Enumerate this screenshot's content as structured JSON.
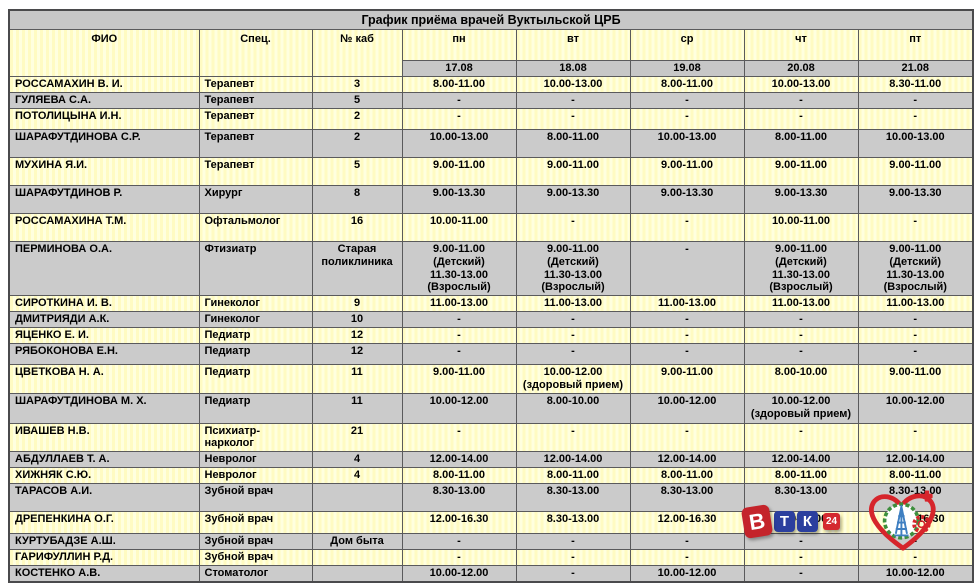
{
  "title": "График приёма врачей Вуктыльской ЦРБ",
  "table": {
    "headers": {
      "fio": "ФИО",
      "spec": "Спец.",
      "room": "№ каб",
      "days": [
        "пн",
        "вт",
        "ср",
        "чт",
        "пт"
      ],
      "dates": [
        "17.08",
        "18.08",
        "19.08",
        "20.08",
        "21.08"
      ]
    },
    "rows": [
      {
        "fio": "РОССАМАХИН В. И.",
        "spec": "Терапевт",
        "room": "3",
        "schedule": [
          "8.00-11.00",
          "10.00-13.00",
          "8.00-11.00",
          "10.00-13.00",
          "8.30-11.00"
        ]
      },
      {
        "fio": "ГУЛЯЕВА С.А.",
        "spec": "Терапевт",
        "room": "5",
        "schedule": [
          "-",
          "-",
          "-",
          "-",
          "-"
        ]
      },
      {
        "fio": "ПОТОЛИЦЫНА И.Н.",
        "spec": "Терапевт",
        "room": "2",
        "schedule": [
          "-",
          "-",
          "-",
          "-",
          "-"
        ]
      },
      {
        "fio": "ШАРАФУТДИНОВА С.Р.",
        "spec": "Терапевт",
        "room": "2",
        "schedule": [
          "10.00-13.00",
          "8.00-11.00",
          "10.00-13.00",
          "8.00-11.00",
          "10.00-13.00"
        ]
      },
      {
        "fio": "МУХИНА Я.И.",
        "spec": "Терапевт",
        "room": "5",
        "schedule": [
          "9.00-11.00",
          "9.00-11.00",
          "9.00-11.00",
          "9.00-11.00",
          "9.00-11.00"
        ]
      },
      {
        "fio": "ШАРАФУТДИНОВ Р.",
        "spec": "Хирург",
        "room": "8",
        "schedule": [
          "9.00-13.30",
          "9.00-13.30",
          "9.00-13.30",
          "9.00-13.30",
          "9.00-13.30"
        ]
      },
      {
        "fio": "РОССАМАХИНА Т.М.",
        "spec": "Офтальмолог",
        "room": "16",
        "schedule": [
          "10.00-11.00",
          "-",
          "-",
          "10.00-11.00",
          "-"
        ]
      },
      {
        "fio": "ПЕРМИНОВА О.А.",
        "spec": "Фтизиатр",
        "room": "Старая\nполиклиника",
        "schedule": [
          "9.00-11.00\n(Детский)\n11.30-13.00\n(Взрослый)",
          "9.00-11.00\n(Детский)\n11.30-13.00\n(Взрослый)",
          "-",
          "9.00-11.00\n(Детский)\n11.30-13.00\n(Взрослый)",
          "9.00-11.00\n(Детский)\n11.30-13.00\n(Взрослый)"
        ]
      },
      {
        "fio": "СИРОТКИНА И. В.",
        "spec": "Гинеколог",
        "room": "9",
        "schedule": [
          "11.00-13.00",
          "11.00-13.00",
          "11.00-13.00",
          "11.00-13.00",
          "11.00-13.00"
        ]
      },
      {
        "fio": "ДМИТРИЯДИ А.К.",
        "spec": "Гинеколог",
        "room": "10",
        "schedule": [
          "-",
          "-",
          "-",
          "-",
          "-"
        ]
      },
      {
        "fio": "ЯЦЕНКО Е. И.",
        "spec": "Педиатр",
        "room": "12",
        "schedule": [
          "-",
          "-",
          "-",
          "-",
          "-"
        ]
      },
      {
        "fio": "РЯБОКОНОВА Е.Н.",
        "spec": "Педиатр",
        "room": "12",
        "schedule": [
          "-",
          "-",
          "-",
          "-",
          "-"
        ]
      },
      {
        "fio": "ЦВЕТКОВА Н. А.",
        "spec": "Педиатр",
        "room": "11",
        "schedule": [
          "9.00-11.00",
          "10.00-12.00\n(здоровый прием)",
          "9.00-11.00",
          "8.00-10.00",
          "9.00-11.00"
        ]
      },
      {
        "fio": "ШАРАФУТДИНОВА М. Х.",
        "spec": "Педиатр",
        "room": "11",
        "schedule": [
          "10.00-12.00",
          "8.00-10.00",
          "10.00-12.00",
          "10.00-12.00\n(здоровый прием)",
          "10.00-12.00"
        ]
      },
      {
        "fio": "ИВАШЕВ Н.В.",
        "spec": "Психиатр-нарколог",
        "room": "21",
        "schedule": [
          "-",
          "-",
          "-",
          "-",
          "-"
        ]
      },
      {
        "fio": "АБДУЛЛАЕВ Т. А.",
        "spec": "Невролог",
        "room": "4",
        "schedule": [
          "12.00-14.00",
          "12.00-14.00",
          "12.00-14.00",
          "12.00-14.00",
          "12.00-14.00"
        ]
      },
      {
        "fio": "ХИЖНЯК С.Ю.",
        "spec": "Невролог",
        "room": "4",
        "schedule": [
          "8.00-11.00",
          "8.00-11.00",
          "8.00-11.00",
          "8.00-11.00",
          "8.00-11.00"
        ]
      },
      {
        "fio": "ТАРАСОВ А.И.",
        "spec": "Зубной врач",
        "room": "",
        "schedule": [
          "8.30-13.00",
          "8.30-13.00",
          "8.30-13.00",
          "8.30-13.00",
          "8.30-13.00"
        ]
      },
      {
        "fio": "ДРЕПЕНКИНА О.Г.",
        "spec": "Зубной врач",
        "room": "",
        "schedule": [
          "12.00-16.30",
          "8.30-13.00",
          "12.00-16.30",
          "8.30-13.00",
          "12.00-16.30"
        ]
      },
      {
        "fio": "КУРТУБАДЗЕ А.Ш.",
        "spec": "Зубной врач",
        "room": "Дом быта",
        "schedule": [
          "-",
          "-",
          "-",
          "-",
          "-"
        ]
      },
      {
        "fio": "ГАРИФУЛЛИН Р.Д.",
        "spec": "Зубной врач",
        "room": "",
        "schedule": [
          "-",
          "-",
          "-",
          "-",
          "-"
        ]
      },
      {
        "fio": "КОСТЕНКО А.В.",
        "spec": "Стоматолог",
        "room": "",
        "schedule": [
          "10.00-12.00",
          "-",
          "10.00-12.00",
          "-",
          "10.00-12.00"
        ]
      }
    ]
  },
  "logos": {
    "vtk": {
      "letters": [
        "В",
        "Т",
        "К"
      ],
      "badge": "24"
    }
  },
  "colors": {
    "row_yellow": "#fffbc2",
    "row_gray": "#cbcbcb",
    "header_gray": "#c7c7c7",
    "border": "#5a5a5c",
    "vtk_red": "#c4242b",
    "vtk_blue": "#2b3f9e",
    "crest_red": "#d6252b",
    "crest_green": "#3d8f3d",
    "crest_blue": "#3f7fc1"
  }
}
